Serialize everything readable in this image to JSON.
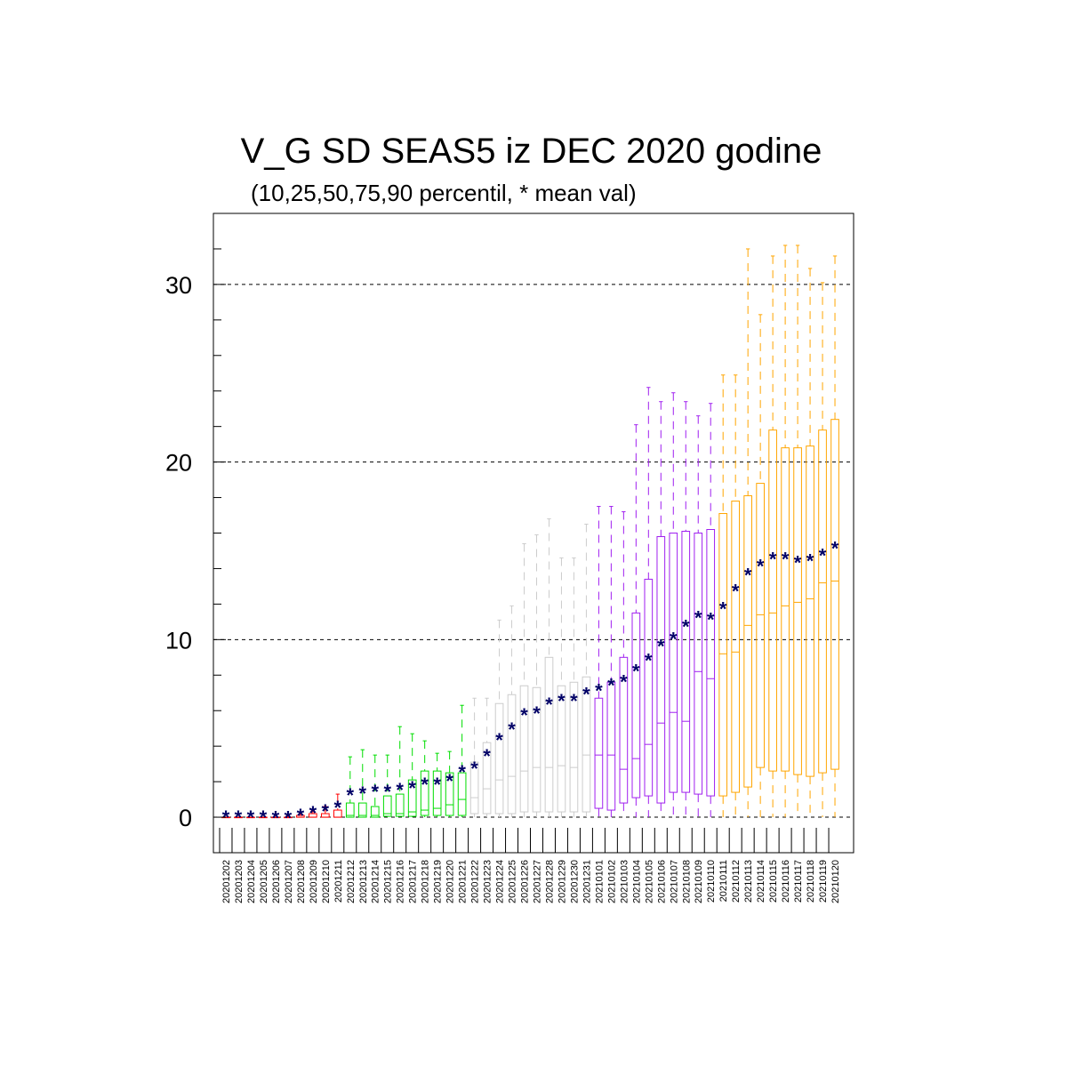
{
  "title": "V_G SD SEAS5 iz DEC 2020 godine",
  "subtitle": "(10,25,50,75,90 percentil, * mean val)",
  "chart_data": {
    "type": "box",
    "ylim": [
      -2,
      34
    ],
    "yticks": [
      0,
      10,
      20,
      30
    ],
    "grid": "dashed horizontal at 0, 10, 20, 30",
    "mean_marker": "*",
    "categories": [
      "20201202",
      "20201203",
      "20201204",
      "20201205",
      "20201206",
      "20201207",
      "20201208",
      "20201209",
      "20201210",
      "20201211",
      "20201212",
      "20201213",
      "20201214",
      "20201215",
      "20201216",
      "20201217",
      "20201218",
      "20201219",
      "20201220",
      "20201221",
      "20201222",
      "20201223",
      "20201224",
      "20201225",
      "20201226",
      "20201227",
      "20201228",
      "20201229",
      "20201230",
      "20201231",
      "20210101",
      "20210102",
      "20210103",
      "20210104",
      "20210105",
      "20210106",
      "20210107",
      "20210108",
      "20210109",
      "20210110",
      "20210111",
      "20210112",
      "20210113",
      "20210114",
      "20210115",
      "20210116",
      "20210117",
      "20210118",
      "20210119",
      "20210120"
    ],
    "colors": [
      "#ff0000",
      "#ff0000",
      "#ff0000",
      "#ff0000",
      "#ff0000",
      "#ff0000",
      "#ff0000",
      "#ff0000",
      "#ff0000",
      "#ff0000",
      "#00dd00",
      "#00dd00",
      "#00dd00",
      "#00dd00",
      "#00dd00",
      "#00dd00",
      "#00dd00",
      "#00dd00",
      "#00dd00",
      "#00dd00",
      "#cccccc",
      "#cccccc",
      "#cccccc",
      "#cccccc",
      "#cccccc",
      "#cccccc",
      "#cccccc",
      "#cccccc",
      "#cccccc",
      "#cccccc",
      "#a020f0",
      "#a020f0",
      "#a020f0",
      "#a020f0",
      "#a020f0",
      "#a020f0",
      "#a020f0",
      "#a020f0",
      "#a020f0",
      "#a020f0",
      "#ffa500",
      "#ffa500",
      "#ffa500",
      "#ffa500",
      "#ffa500",
      "#ffa500",
      "#ffa500",
      "#ffa500",
      "#ffa500",
      "#ffa500"
    ],
    "mean_color": "#000066",
    "p10": [
      0,
      0,
      0,
      0,
      0,
      0,
      0,
      0,
      0,
      0,
      0,
      0,
      0,
      0,
      0,
      0,
      0,
      0,
      0,
      0,
      0,
      0,
      0,
      0,
      0,
      0,
      0,
      0,
      0,
      0,
      0,
      0,
      0,
      0,
      0,
      0,
      0,
      0,
      0,
      0,
      0,
      0,
      0,
      0,
      0,
      0,
      0,
      0,
      0,
      0
    ],
    "p25": [
      0,
      0,
      0,
      0,
      0,
      0,
      0,
      0,
      0,
      0,
      0,
      0,
      0,
      0.05,
      0.05,
      0.05,
      0.1,
      0.1,
      0.1,
      0.1,
      0.2,
      0.2,
      0.2,
      0.2,
      0.3,
      0.3,
      0.3,
      0.3,
      0.3,
      0.3,
      0.5,
      0.4,
      0.8,
      1.1,
      1.2,
      0.8,
      1.4,
      1.4,
      1.3,
      1.2,
      1.2,
      1.4,
      1.7,
      2.8,
      2.6,
      2.6,
      2.4,
      2.3,
      2.5,
      2.7
    ],
    "p50": [
      0,
      0,
      0,
      0,
      0,
      0,
      0,
      0,
      0,
      0,
      0.1,
      0.1,
      0.1,
      0.2,
      0.2,
      0.3,
      0.4,
      0.5,
      0.7,
      1.0,
      1.1,
      1.6,
      2.1,
      2.3,
      2.6,
      2.8,
      2.8,
      2.9,
      2.8,
      3.5,
      3.5,
      3.5,
      2.7,
      3.3,
      4.1,
      5.3,
      5.9,
      5.4,
      8.2,
      7.8,
      9.2,
      9.3,
      10.8,
      11.4,
      11.5,
      11.9,
      12.1,
      12.3,
      13.2,
      13.3
    ],
    "p75": [
      0,
      0,
      0,
      0,
      0,
      0,
      0.1,
      0.2,
      0.2,
      0.4,
      0.8,
      0.8,
      0.6,
      1.2,
      1.3,
      2.1,
      2.6,
      2.6,
      2.5,
      2.5,
      3.1,
      4.2,
      6.4,
      6.9,
      7.4,
      7.3,
      9.0,
      7.4,
      7.6,
      7.9,
      6.7,
      7.6,
      9.0,
      11.5,
      13.4,
      15.8,
      16.0,
      16.1,
      16.0,
      16.2,
      17.1,
      17.8,
      18.1,
      18.8,
      21.8,
      20.8,
      20.8,
      20.9,
      21.8,
      22.4
    ],
    "p90": [
      0,
      0,
      0,
      0,
      0,
      0.1,
      0.2,
      0.4,
      0.6,
      1.3,
      3.4,
      3.8,
      3.5,
      3.5,
      5.1,
      4.7,
      4.3,
      3.6,
      3.7,
      6.3,
      6.7,
      6.7,
      11.1,
      11.9,
      15.4,
      15.9,
      16.8,
      14.6,
      14.6,
      16.5,
      17.5,
      17.5,
      17.2,
      22.1,
      24.2,
      23.4,
      23.9,
      23.4,
      22.6,
      23.3,
      24.9,
      24.9,
      32.0,
      28.3,
      31.6,
      32.2,
      32.2,
      30.9,
      30.1,
      31.6
    ],
    "mean": [
      0.05,
      0.05,
      0.05,
      0.05,
      0.03,
      0.03,
      0.15,
      0.3,
      0.4,
      0.6,
      1.3,
      1.4,
      1.5,
      1.5,
      1.6,
      1.7,
      1.9,
      1.9,
      2.1,
      2.6,
      2.8,
      3.5,
      4.4,
      5.0,
      5.8,
      5.9,
      6.4,
      6.6,
      6.6,
      7.0,
      7.2,
      7.5,
      7.7,
      8.3,
      8.9,
      9.7,
      10.1,
      10.8,
      11.3,
      11.2,
      11.8,
      12.8,
      13.7,
      14.2,
      14.6,
      14.6,
      14.4,
      14.5,
      14.8,
      15.2
    ]
  }
}
